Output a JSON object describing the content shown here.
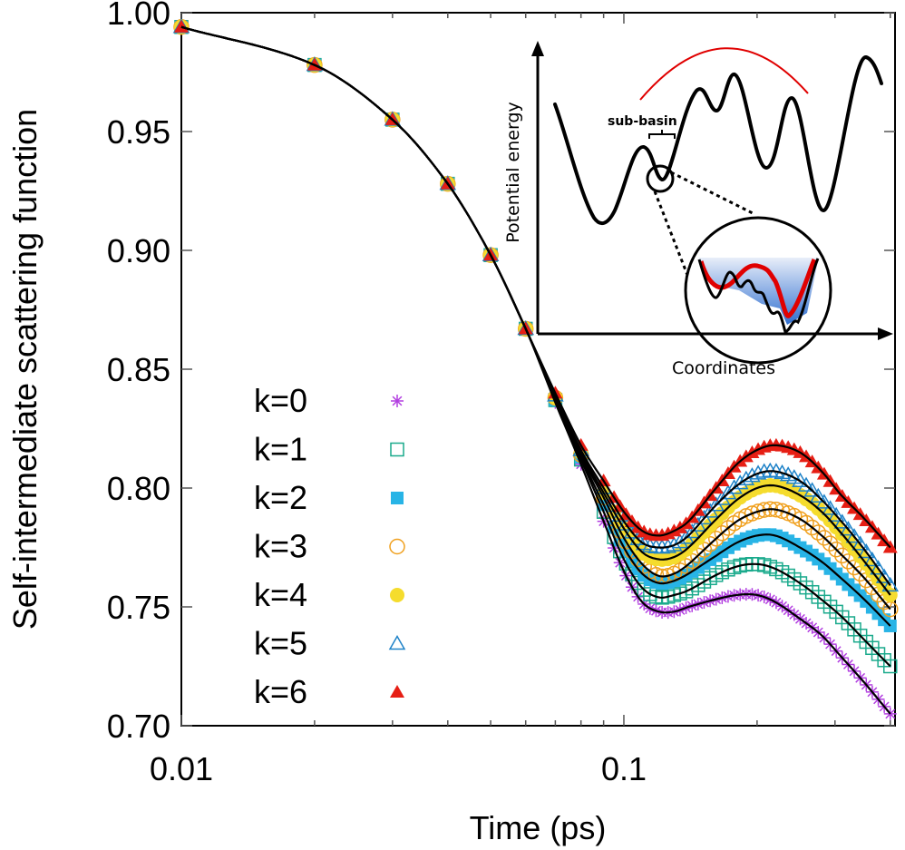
{
  "chart_data": {
    "type": "line",
    "title": "",
    "xlabel": "Time (ps)",
    "ylabel": "Self-intermediate scattering function",
    "xscale": "log",
    "xlim": [
      0.01,
      0.41
    ],
    "ylim": [
      0.7,
      1.0
    ],
    "grid": false,
    "legend_position": "left-center",
    "x_ticks": [
      {
        "value": 0.01,
        "label": "0.01"
      },
      {
        "value": 0.1,
        "label": "0.1"
      }
    ],
    "x_minor_ticks": [
      0.02,
      0.03,
      0.04,
      0.05,
      0.06,
      0.07,
      0.08,
      0.09,
      0.2,
      0.3,
      0.4
    ],
    "y_ticks": [
      {
        "value": 1.0,
        "label": "1.00"
      },
      {
        "value": 0.95,
        "label": "0.95"
      },
      {
        "value": 0.9,
        "label": "0.90"
      },
      {
        "value": 0.85,
        "label": "0.85"
      },
      {
        "value": 0.8,
        "label": "0.80"
      },
      {
        "value": 0.75,
        "label": "0.75"
      },
      {
        "value": 0.7,
        "label": "0.70"
      }
    ],
    "x": [
      0.01,
      0.02,
      0.03,
      0.04,
      0.05,
      0.06,
      0.07,
      0.08,
      0.09,
      0.1,
      0.11,
      0.12,
      0.13,
      0.14,
      0.16,
      0.18,
      0.2,
      0.22,
      0.25,
      0.28,
      0.31,
      0.35,
      0.4
    ],
    "series": [
      {
        "name": "k=0",
        "marker": "asterisk",
        "color": "#b23ee0",
        "values": [
          0.994,
          0.978,
          0.955,
          0.928,
          0.898,
          0.867,
          0.836,
          0.81,
          0.786,
          0.765,
          0.752,
          0.748,
          0.748,
          0.75,
          0.753,
          0.755,
          0.755,
          0.752,
          0.745,
          0.738,
          0.729,
          0.718,
          0.705
        ]
      },
      {
        "name": "k=1",
        "marker": "open-square",
        "color": "#1aaa8c",
        "values": [
          0.994,
          0.978,
          0.955,
          0.928,
          0.898,
          0.867,
          0.837,
          0.812,
          0.79,
          0.77,
          0.758,
          0.754,
          0.755,
          0.757,
          0.763,
          0.767,
          0.768,
          0.766,
          0.76,
          0.753,
          0.746,
          0.736,
          0.725
        ]
      },
      {
        "name": "k=2",
        "marker": "filled-square",
        "color": "#28b4e6",
        "values": [
          0.994,
          0.978,
          0.955,
          0.928,
          0.898,
          0.867,
          0.837,
          0.813,
          0.793,
          0.775,
          0.764,
          0.76,
          0.761,
          0.764,
          0.771,
          0.777,
          0.78,
          0.78,
          0.775,
          0.769,
          0.762,
          0.753,
          0.742
        ]
      },
      {
        "name": "k=3",
        "marker": "open-circle",
        "color": "#f0a01e",
        "values": [
          0.994,
          0.978,
          0.955,
          0.928,
          0.898,
          0.867,
          0.838,
          0.814,
          0.796,
          0.779,
          0.768,
          0.763,
          0.764,
          0.768,
          0.778,
          0.786,
          0.79,
          0.791,
          0.787,
          0.78,
          0.772,
          0.762,
          0.749
        ]
      },
      {
        "name": "k=4",
        "marker": "filled-circle",
        "color": "#f5dc2d",
        "values": [
          0.994,
          0.978,
          0.955,
          0.928,
          0.898,
          0.867,
          0.838,
          0.815,
          0.798,
          0.783,
          0.773,
          0.77,
          0.771,
          0.775,
          0.786,
          0.795,
          0.8,
          0.801,
          0.797,
          0.79,
          0.781,
          0.769,
          0.755
        ]
      },
      {
        "name": "k=5",
        "marker": "open-triangle",
        "color": "#1e82c8",
        "values": [
          0.994,
          0.978,
          0.955,
          0.928,
          0.898,
          0.867,
          0.839,
          0.816,
          0.8,
          0.786,
          0.777,
          0.775,
          0.776,
          0.78,
          0.792,
          0.801,
          0.806,
          0.807,
          0.803,
          0.795,
          0.786,
          0.774,
          0.759
        ]
      },
      {
        "name": "k=6",
        "marker": "filled-triangle",
        "color": "#e61e14",
        "values": [
          0.994,
          0.978,
          0.955,
          0.928,
          0.898,
          0.867,
          0.84,
          0.818,
          0.803,
          0.79,
          0.782,
          0.78,
          0.782,
          0.786,
          0.799,
          0.81,
          0.816,
          0.818,
          0.815,
          0.807,
          0.797,
          0.787,
          0.775
        ]
      }
    ],
    "inset": {
      "xlabel": "Coordinates",
      "ylabel": "Potential energy",
      "annotation": "sub-basin",
      "description": "Rugged potential energy landscape with a zoomed sub-basin circle"
    }
  }
}
